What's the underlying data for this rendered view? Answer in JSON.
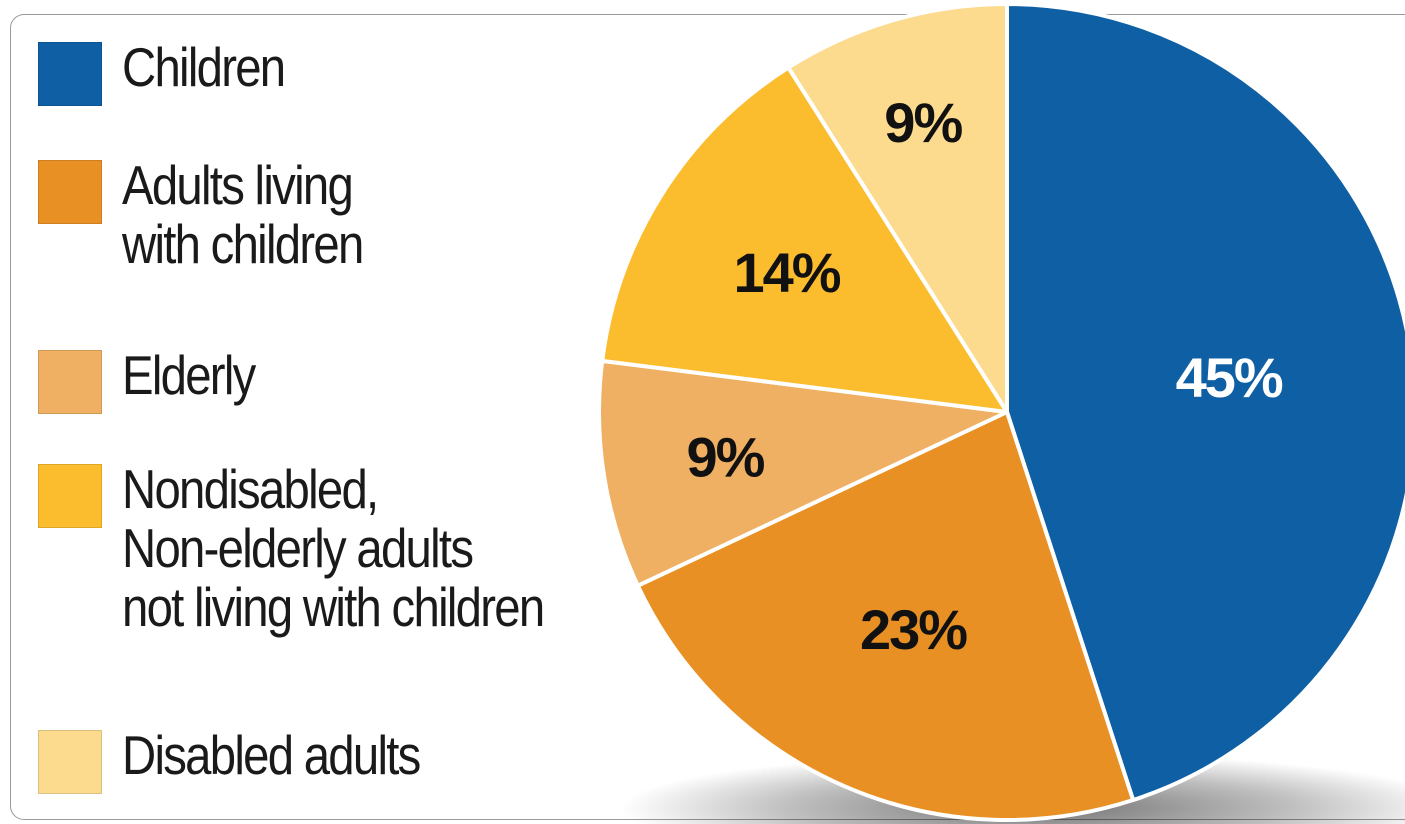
{
  "chart_data": {
    "type": "pie",
    "title": "",
    "slices": [
      {
        "label": "Children",
        "value": 45,
        "display": "45%",
        "color": "#0e5fa4",
        "text_color": "#ffffff"
      },
      {
        "label": "Adults living\nwith children",
        "value": 23,
        "display": "23%",
        "color": "#e99025",
        "text_color": "#111111"
      },
      {
        "label": "Elderly",
        "value": 9,
        "display": "9%",
        "color": "#efb064",
        "text_color": "#111111"
      },
      {
        "label": "Nondisabled,\nNon-elderly adults\nnot living with children",
        "value": 14,
        "display": "14%",
        "color": "#fbbd2d",
        "text_color": "#111111"
      },
      {
        "label": "Disabled adults",
        "value": 9,
        "display": "9%",
        "color": "#fcdb8f",
        "text_color": "#111111"
      }
    ],
    "legend_position": "left"
  }
}
